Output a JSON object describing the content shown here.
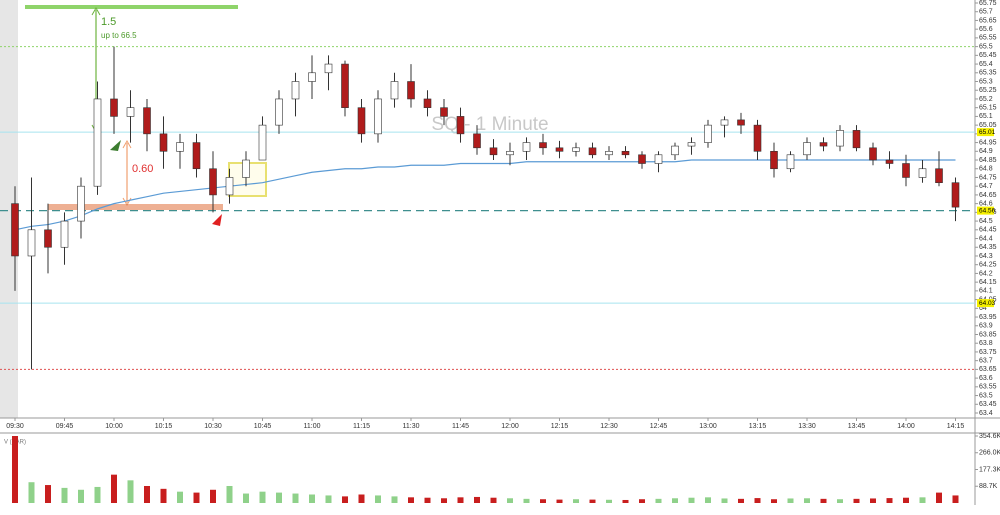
{
  "chart_data": [
    {
      "type": "candlestick",
      "watermark": "SQ - 1 Minute",
      "annotations": [
        "1.5",
        "up to 66.5",
        "0.60"
      ],
      "x": [
        "09:30",
        "09:35",
        "09:40",
        "09:45",
        "09:50",
        "09:55",
        "10:00",
        "10:05",
        "10:10",
        "10:15",
        "10:20",
        "10:25",
        "10:30",
        "10:35",
        "10:40",
        "10:45",
        "10:50",
        "10:55",
        "11:00",
        "11:05",
        "11:10",
        "11:15",
        "11:20",
        "11:25",
        "11:30",
        "11:35",
        "11:40",
        "11:45",
        "11:50",
        "11:55",
        "12:00",
        "12:05",
        "12:10",
        "12:15",
        "12:20",
        "12:25",
        "12:30",
        "12:35",
        "12:40",
        "12:45",
        "12:50",
        "12:55",
        "13:00",
        "13:05",
        "13:10",
        "13:15",
        "13:20",
        "13:25",
        "13:30",
        "13:35",
        "13:40",
        "13:45",
        "13:50",
        "13:55",
        "14:00",
        "14:05",
        "14:10",
        "14:15"
      ],
      "open": [
        64.6,
        64.3,
        64.45,
        64.35,
        64.5,
        64.7,
        65.2,
        65.1,
        65.15,
        65.0,
        64.9,
        64.95,
        64.8,
        64.65,
        64.75,
        64.85,
        65.05,
        65.2,
        65.3,
        65.35,
        65.4,
        65.15,
        65.0,
        65.2,
        65.3,
        65.2,
        65.15,
        65.1,
        65.0,
        64.92,
        64.88,
        64.9,
        64.95,
        64.92,
        64.9,
        64.92,
        64.88,
        64.9,
        64.88,
        64.83,
        64.88,
        64.93,
        64.95,
        65.05,
        65.08,
        65.05,
        64.9,
        64.8,
        64.88,
        64.95,
        64.93,
        65.02,
        64.92,
        64.85,
        64.83,
        64.75,
        64.8,
        64.72
      ],
      "high": [
        64.7,
        64.75,
        64.6,
        64.55,
        64.75,
        65.3,
        65.5,
        65.25,
        65.2,
        65.1,
        65.0,
        65.0,
        64.9,
        64.8,
        64.9,
        65.1,
        65.25,
        65.35,
        65.45,
        65.45,
        65.42,
        65.2,
        65.25,
        65.35,
        65.4,
        65.25,
        65.2,
        65.15,
        65.05,
        64.97,
        64.95,
        64.98,
        65.0,
        64.96,
        64.95,
        64.95,
        64.93,
        64.93,
        64.9,
        64.9,
        64.95,
        64.98,
        65.08,
        65.1,
        65.12,
        65.08,
        64.95,
        64.9,
        64.98,
        64.98,
        65.05,
        65.05,
        64.95,
        64.9,
        64.88,
        64.85,
        64.9,
        64.75
      ],
      "low": [
        64.1,
        63.65,
        64.2,
        64.25,
        64.4,
        64.65,
        65.0,
        64.95,
        64.9,
        64.8,
        64.8,
        64.75,
        64.55,
        64.6,
        64.7,
        64.85,
        65.0,
        65.1,
        65.2,
        65.25,
        65.1,
        64.95,
        64.95,
        65.15,
        65.15,
        65.1,
        65.05,
        64.95,
        64.88,
        64.85,
        64.82,
        64.85,
        64.88,
        64.86,
        64.87,
        64.86,
        64.85,
        64.86,
        64.8,
        64.78,
        64.85,
        64.88,
        64.92,
        64.98,
        65.0,
        64.85,
        64.75,
        64.78,
        64.85,
        64.9,
        64.9,
        64.9,
        64.82,
        64.8,
        64.7,
        64.72,
        64.7,
        64.5
      ],
      "close": [
        64.3,
        64.45,
        64.35,
        64.5,
        64.7,
        65.2,
        65.1,
        65.15,
        65.0,
        64.9,
        64.95,
        64.8,
        64.65,
        64.75,
        64.85,
        65.05,
        65.2,
        65.3,
        65.35,
        65.4,
        65.15,
        65.0,
        65.2,
        65.3,
        65.2,
        65.15,
        65.1,
        65.0,
        64.92,
        64.88,
        64.9,
        64.95,
        64.92,
        64.9,
        64.92,
        64.88,
        64.9,
        64.88,
        64.83,
        64.88,
        64.93,
        64.95,
        65.05,
        65.08,
        65.05,
        64.9,
        64.8,
        64.88,
        64.95,
        64.93,
        65.02,
        64.92,
        64.85,
        64.83,
        64.75,
        64.8,
        64.72,
        64.58
      ],
      "up_color": "#ffffff",
      "down_color": "#b01c1c",
      "overlays": [
        {
          "color": "#5b9bd5",
          "values": [
            64.45,
            64.47,
            64.48,
            64.5,
            64.53,
            64.57,
            64.6,
            64.62,
            64.64,
            64.66,
            64.67,
            64.68,
            64.69,
            64.7,
            64.71,
            64.72,
            64.74,
            64.76,
            64.78,
            64.79,
            64.8,
            64.8,
            64.81,
            64.81,
            64.82,
            64.82,
            64.82,
            64.83,
            64.83,
            64.83,
            64.83,
            64.84,
            64.84,
            64.84,
            64.84,
            64.84,
            64.84,
            64.84,
            64.84,
            64.84,
            64.84,
            64.85,
            64.85,
            64.85,
            64.85,
            64.85,
            64.85,
            64.85,
            64.85,
            64.85,
            64.85,
            64.85,
            64.85,
            64.85,
            64.85,
            64.85,
            64.85,
            64.85
          ]
        }
      ],
      "levels": [
        {
          "value": 65.5,
          "color": "#8fd46a",
          "style": "dotted",
          "tag": false
        },
        {
          "value": 65.01,
          "color": "#a6e4ef",
          "style": "solid",
          "tag": true
        },
        {
          "value": 64.56,
          "color": "#3f8f8f",
          "style": "dashed",
          "tag": true
        },
        {
          "value": 64.03,
          "color": "#a6e4ef",
          "style": "solid",
          "tag": true
        },
        {
          "value": 63.65,
          "color": "#e05050",
          "style": "dotted",
          "tag": false
        }
      ],
      "ylim": [
        63.4,
        65.75
      ],
      "yticks": [
        63.4,
        63.45,
        63.5,
        63.55,
        63.6,
        63.65,
        63.7,
        63.75,
        63.8,
        63.85,
        63.9,
        63.95,
        64,
        64.05,
        64.1,
        64.15,
        64.2,
        64.25,
        64.3,
        64.35,
        64.4,
        64.45,
        64.5,
        64.55,
        64.6,
        64.65,
        64.7,
        64.75,
        64.8,
        64.85,
        64.9,
        64.95,
        65,
        65.05,
        65.1,
        65.15,
        65.2,
        65.25,
        65.3,
        65.35,
        65.4,
        65.45,
        65.5,
        65.55,
        65.6,
        65.65,
        65.7,
        65.75
      ],
      "xticks": [
        "09:30",
        "09:45",
        "10:00",
        "10:15",
        "10:30",
        "10:45",
        "11:00",
        "11:15",
        "11:30",
        "11:45",
        "12:00",
        "12:15",
        "12:30",
        "12:45",
        "13:00",
        "13:15",
        "13:30",
        "13:45",
        "14:00",
        "14:15"
      ]
    },
    {
      "type": "bar",
      "title": "V (BAR)",
      "values": [
        354600,
        110000,
        95000,
        80000,
        70000,
        85000,
        150000,
        120000,
        90000,
        75000,
        60000,
        55000,
        70000,
        90000,
        50000,
        60000,
        55000,
        50000,
        45000,
        40000,
        35000,
        45000,
        40000,
        35000,
        30000,
        28000,
        25000,
        30000,
        32000,
        28000,
        25000,
        22000,
        20000,
        18000,
        20000,
        18000,
        17000,
        16000,
        20000,
        22000,
        25000,
        28000,
        30000,
        24000,
        22000,
        26000,
        20000,
        24000,
        25000,
        22000,
        20000,
        22000,
        24000,
        26000,
        28000,
        30000,
        55000,
        40000
      ],
      "up_color": "#8fd18a",
      "down_color": "#c81e1e",
      "ylim": [
        0,
        354600
      ],
      "yticks": [
        {
          "value": 88700,
          "label": "88.7K"
        },
        {
          "value": 177300,
          "label": "177.3K"
        },
        {
          "value": 266000,
          "label": "266.0K"
        },
        {
          "value": 354600,
          "label": "354.6K"
        }
      ]
    }
  ]
}
